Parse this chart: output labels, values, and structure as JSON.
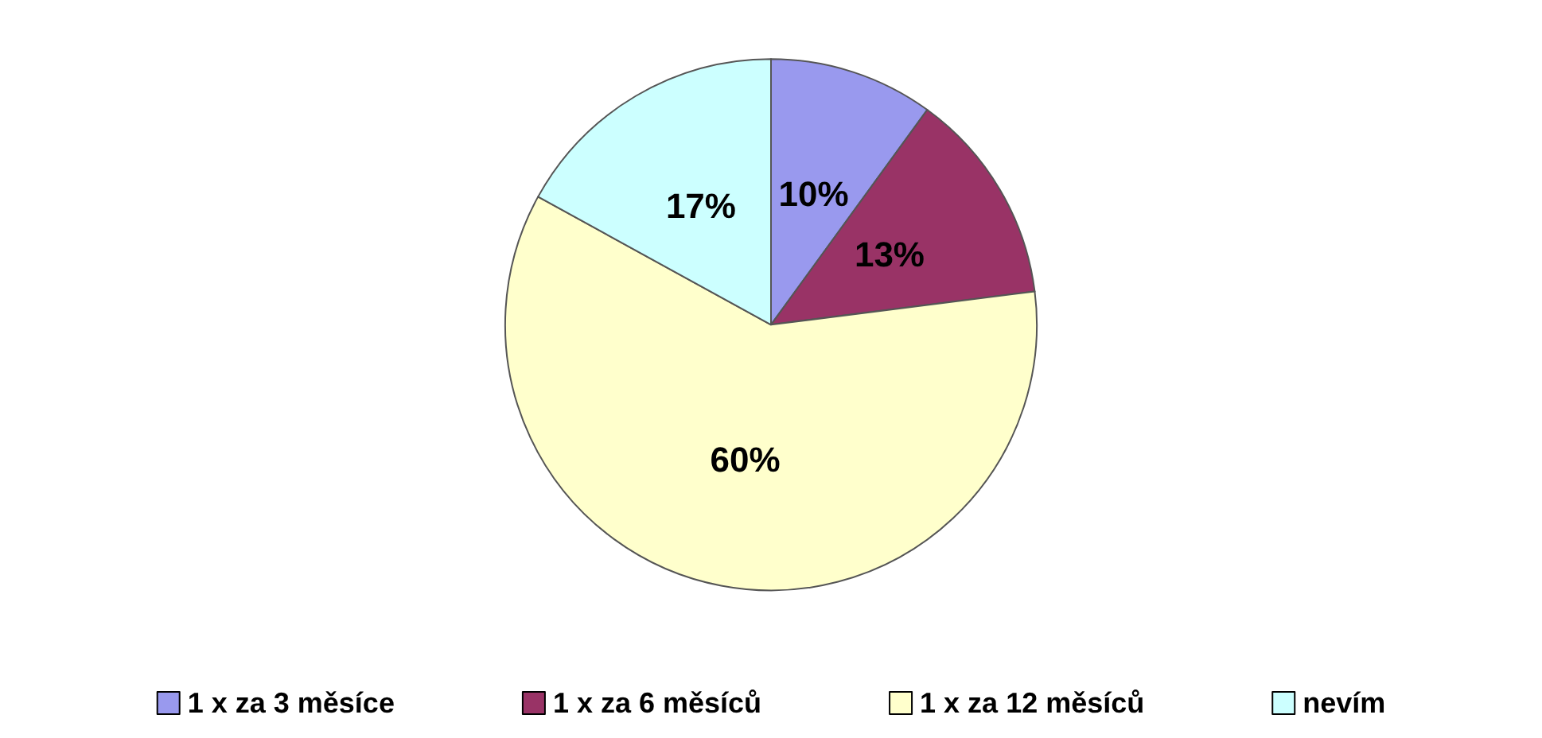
{
  "chart_data": {
    "type": "pie",
    "categories": [
      "1 x za 3 měsíce",
      "1 x za 6 měsíců",
      "1 x za 12 měsíců",
      "nevím"
    ],
    "values": [
      10,
      13,
      60,
      17
    ],
    "colors": [
      "#9999ee",
      "#993366",
      "#ffffcc",
      "#ccffff"
    ],
    "value_labels": [
      "10%",
      "13%",
      "60%",
      "17%"
    ],
    "legend": "bottom"
  }
}
